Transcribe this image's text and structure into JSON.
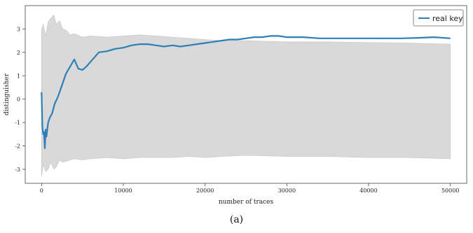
{
  "chart_data": {
    "type": "line",
    "xlabel": "number of traces",
    "ylabel": "distinguisher",
    "xlim": [
      -2000,
      52000
    ],
    "ylim": [
      -3.6,
      4.0
    ],
    "x_ticks": [
      0,
      10000,
      20000,
      30000,
      40000,
      50000
    ],
    "y_ticks": [
      -3,
      -2,
      -1,
      0,
      1,
      2,
      3
    ],
    "grid": false,
    "legend_position": "top-right",
    "colors": {
      "band": "#d9d9d9",
      "band_edge": "#c4c4c4",
      "line": "#2e7fb8"
    },
    "series": [
      {
        "name": "real key",
        "role": "line",
        "x": [
          0,
          100,
          200,
          300,
          400,
          500,
          600,
          800,
          1000,
          1300,
          1600,
          2000,
          2500,
          3000,
          3500,
          4000,
          4500,
          5000,
          5500,
          6000,
          7000,
          8000,
          9000,
          10000,
          11000,
          12000,
          13000,
          14000,
          15000,
          16000,
          17000,
          18000,
          19000,
          20000,
          21000,
          22000,
          23000,
          24000,
          25000,
          26000,
          27000,
          28000,
          29000,
          30000,
          32000,
          34000,
          36000,
          38000,
          40000,
          42000,
          44000,
          46000,
          48000,
          50000
        ],
        "y": [
          0.3,
          -1.2,
          -1.5,
          -1.4,
          -2.1,
          -1.3,
          -1.6,
          -1.0,
          -0.8,
          -0.6,
          -0.2,
          0.1,
          0.6,
          1.1,
          1.4,
          1.7,
          1.3,
          1.25,
          1.4,
          1.6,
          2.0,
          2.05,
          2.15,
          2.2,
          2.3,
          2.35,
          2.35,
          2.3,
          2.25,
          2.3,
          2.25,
          2.3,
          2.35,
          2.4,
          2.45,
          2.5,
          2.55,
          2.55,
          2.6,
          2.65,
          2.65,
          2.7,
          2.7,
          2.65,
          2.65,
          2.6,
          2.6,
          2.6,
          2.6,
          2.6,
          2.6,
          2.62,
          2.65,
          2.6
        ]
      },
      {
        "name": "",
        "role": "band-upper",
        "x": [
          0,
          200,
          500,
          800,
          1100,
          1500,
          1800,
          2200,
          2600,
          3000,
          3500,
          4000,
          5000,
          6000,
          8000,
          10000,
          12000,
          14000,
          16000,
          18000,
          20000,
          22000,
          25000,
          30000,
          35000,
          40000,
          45000,
          50000
        ],
        "y": [
          3.0,
          3.2,
          2.7,
          3.3,
          3.45,
          3.6,
          3.2,
          3.35,
          3.0,
          2.95,
          2.75,
          2.8,
          2.65,
          2.7,
          2.65,
          2.7,
          2.75,
          2.7,
          2.65,
          2.6,
          2.55,
          2.5,
          2.5,
          2.45,
          2.45,
          2.42,
          2.4,
          2.35
        ]
      },
      {
        "name": "",
        "role": "band-lower",
        "x": [
          0,
          200,
          500,
          800,
          1100,
          1500,
          1800,
          2200,
          2600,
          3000,
          3500,
          4000,
          5000,
          6000,
          8000,
          10000,
          12000,
          14000,
          16000,
          18000,
          20000,
          22000,
          25000,
          30000,
          35000,
          40000,
          45000,
          50000
        ],
        "y": [
          -3.3,
          -2.8,
          -3.1,
          -3.0,
          -2.7,
          -3.0,
          -2.9,
          -2.6,
          -2.7,
          -2.65,
          -2.6,
          -2.55,
          -2.6,
          -2.55,
          -2.5,
          -2.55,
          -2.5,
          -2.5,
          -2.5,
          -2.45,
          -2.5,
          -2.45,
          -2.4,
          -2.45,
          -2.45,
          -2.5,
          -2.5,
          -2.55
        ]
      }
    ],
    "caption": "(a)"
  }
}
